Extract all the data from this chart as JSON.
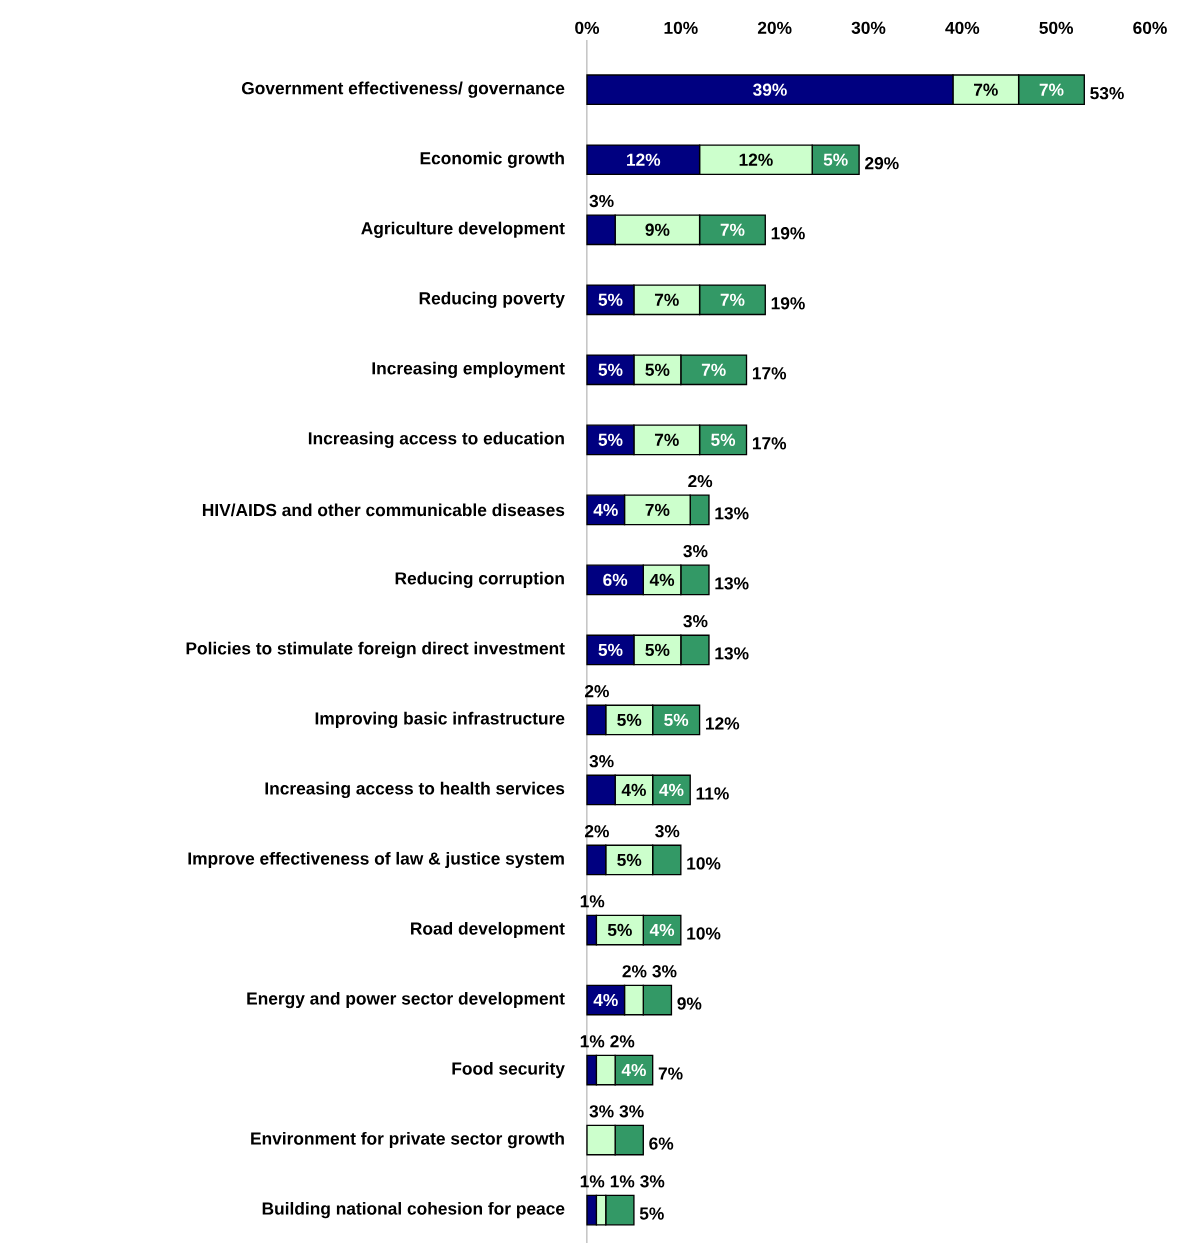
{
  "chart_data": {
    "type": "bar",
    "orientation": "horizontal",
    "stacked": true,
    "categories": [
      "Government effectiveness/ governance",
      "Economic growth",
      "Agriculture development",
      "Reducing poverty",
      "Increasing employment",
      "Increasing access to education",
      "HIV/AIDS and other communicable diseases",
      "Reducing corruption",
      "Policies to stimulate foreign direct investment",
      "Improving basic infrastructure",
      "Increasing access to health services",
      "Improve effectiveness of law & justice system",
      "Road development",
      "Energy and power sector development",
      "Food security",
      "Environment for private sector growth",
      "Building national cohesion for peace"
    ],
    "series": [
      {
        "color": "#000080",
        "values": [
          39,
          12,
          3,
          5,
          5,
          5,
          4,
          6,
          5,
          2,
          3,
          2,
          1,
          4,
          1,
          0,
          1
        ],
        "value_labels": [
          "39%",
          "12%",
          "3%",
          "5%",
          "5%",
          "5%",
          "4%",
          "6%",
          "5%",
          "2%",
          "3%",
          "2%",
          "1%",
          "4%",
          "1%",
          null,
          "1%"
        ]
      },
      {
        "color": "#ccffcc",
        "values": [
          7,
          12,
          9,
          7,
          5,
          7,
          7,
          4,
          5,
          5,
          4,
          5,
          5,
          2,
          2,
          3,
          1
        ],
        "value_labels": [
          "7%",
          "12%",
          "9%",
          "7%",
          "5%",
          "7%",
          "7%",
          "4%",
          "5%",
          "5%",
          "4%",
          "5%",
          "5%",
          "2%",
          "2%",
          "3%",
          "1%"
        ]
      },
      {
        "color": "#339966",
        "values": [
          7,
          5,
          7,
          7,
          7,
          5,
          2,
          3,
          3,
          5,
          4,
          3,
          4,
          3,
          4,
          3,
          3
        ],
        "value_labels": [
          "7%",
          "5%",
          "7%",
          "7%",
          "7%",
          "5%",
          "2%",
          "3%",
          "3%",
          "5%",
          "4%",
          "3%",
          "4%",
          "3%",
          "4%",
          "3%",
          "3%"
        ]
      }
    ],
    "totals": [
      "53%",
      "29%",
      "19%",
      "19%",
      "17%",
      "17%",
      "13%",
      "13%",
      "13%",
      "12%",
      "11%",
      "10%",
      "10%",
      "9%",
      "7%",
      "6%",
      "5%"
    ],
    "xlim": [
      0,
      60
    ],
    "xticks": [
      {
        "value": 0,
        "label": "0%"
      },
      {
        "value": 10,
        "label": "10%"
      },
      {
        "value": 20,
        "label": "20%"
      },
      {
        "value": 30,
        "label": "30%"
      },
      {
        "value": 40,
        "label": "40%"
      },
      {
        "value": 50,
        "label": "50%"
      },
      {
        "value": 60,
        "label": "60%"
      }
    ]
  }
}
